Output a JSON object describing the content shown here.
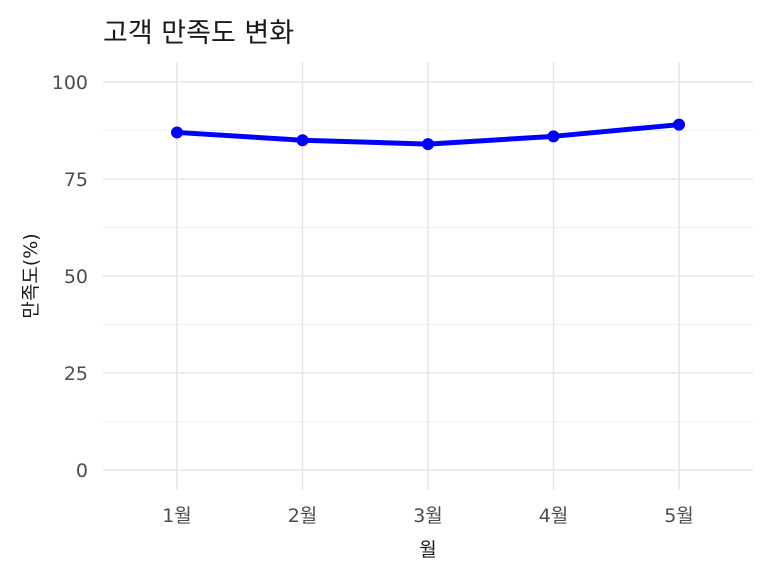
{
  "chart_data": {
    "type": "line",
    "title": "고객 만족도 변화",
    "xlabel": "월",
    "ylabel": "만족도(%)",
    "categories": [
      "1월",
      "2월",
      "3월",
      "4월",
      "5월"
    ],
    "series": [
      {
        "values": [
          87,
          85,
          84,
          86,
          89
        ]
      }
    ],
    "ylim": [
      0,
      100
    ],
    "yticks": [
      0,
      25,
      50,
      75,
      100
    ],
    "grid": true,
    "legend": "none",
    "line_color": "#0000ff"
  }
}
